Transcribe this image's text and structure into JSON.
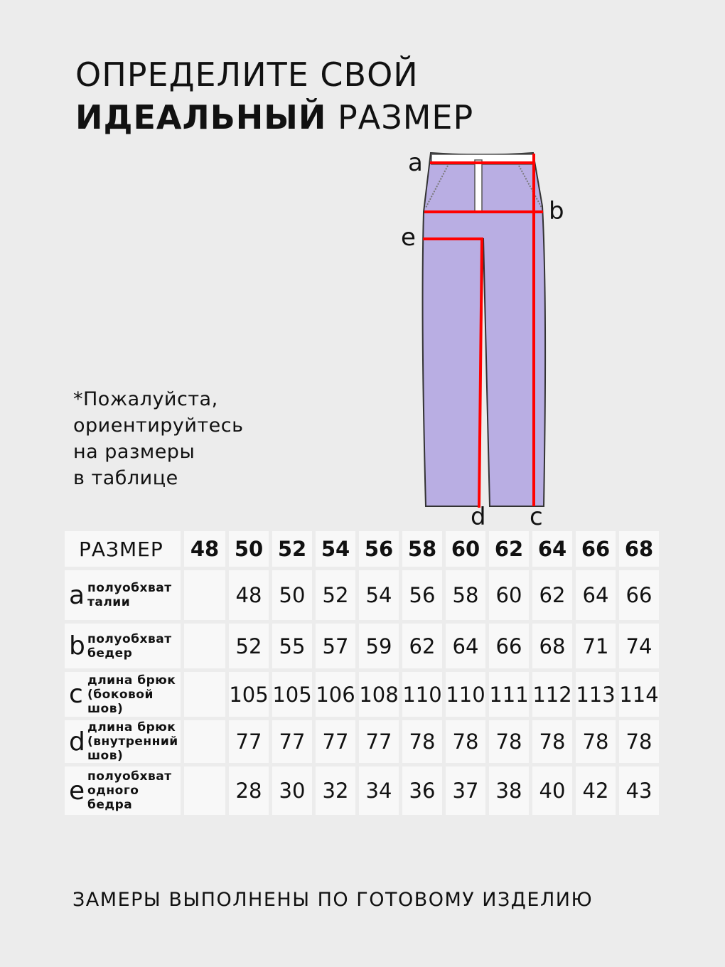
{
  "title": {
    "line1": "ОПРЕДЕЛИТЕ СВОЙ",
    "line2_bold": "ИДЕАЛЬНЫЙ",
    "line2_rest": " РАЗМЕР"
  },
  "note": [
    "*Пожалуйста,",
    "ориентируйтесь",
    "на размеры",
    "в таблице"
  ],
  "diagram": {
    "labels": {
      "a": "a",
      "b": "b",
      "c": "c",
      "d": "d",
      "e": "e"
    },
    "garment_color": "#b9aee3",
    "measure_color": "#ff0000"
  },
  "table": {
    "header_label": "РАЗМЕР",
    "sizes": [
      "48",
      "50",
      "52",
      "54",
      "56",
      "58",
      "60",
      "62",
      "64",
      "66",
      "68"
    ],
    "rows": [
      {
        "letter": "a",
        "desc": [
          "полуобхват",
          "талии"
        ],
        "values": [
          "",
          "48",
          "50",
          "52",
          "54",
          "56",
          "58",
          "60",
          "62",
          "64",
          "66"
        ]
      },
      {
        "letter": "b",
        "desc": [
          "полуобхват",
          "бедер"
        ],
        "values": [
          "",
          "52",
          "55",
          "57",
          "59",
          "62",
          "64",
          "66",
          "68",
          "71",
          "74"
        ]
      },
      {
        "letter": "c",
        "desc": [
          "длина брюк",
          "(боковой",
          "шов)"
        ],
        "values": [
          "",
          "105",
          "105",
          "106",
          "108",
          "110",
          "110",
          "111",
          "112",
          "113",
          "114"
        ]
      },
      {
        "letter": "d",
        "desc": [
          "длина брюк",
          "(внутренний",
          "шов)"
        ],
        "values": [
          "",
          "77",
          "77",
          "77",
          "77",
          "78",
          "78",
          "78",
          "78",
          "78",
          "78"
        ]
      },
      {
        "letter": "e",
        "desc": [
          "полуобхват",
          "одного",
          "бедра"
        ],
        "values": [
          "",
          "28",
          "30",
          "32",
          "34",
          "36",
          "37",
          "38",
          "40",
          "42",
          "43"
        ]
      }
    ]
  },
  "footer": "ЗАМЕРЫ ВЫПОЛНЕНЫ ПО ГОТОВОМУ ИЗДЕЛИЮ"
}
